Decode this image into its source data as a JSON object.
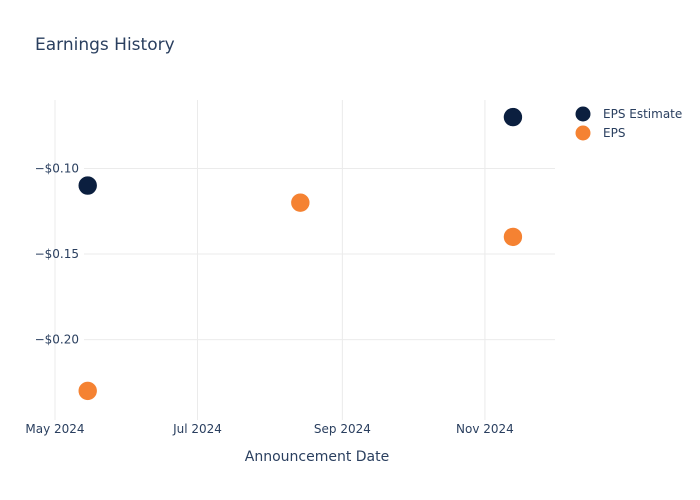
{
  "chart_data": {
    "type": "scatter",
    "title": "Earnings History",
    "xlabel": "Announcement Date",
    "ylabel": "",
    "x_axis": {
      "type": "date",
      "range": [
        "2024-05-01",
        "2024-12-01"
      ],
      "ticks": [
        {
          "date": "2024-05-01",
          "label": "May 2024"
        },
        {
          "date": "2024-07-01",
          "label": "Jul 2024"
        },
        {
          "date": "2024-09-01",
          "label": "Sep 2024"
        },
        {
          "date": "2024-11-01",
          "label": "Nov 2024"
        }
      ]
    },
    "y_axis": {
      "range": [
        -0.247,
        -0.06
      ],
      "ticks": [
        {
          "value": -0.1,
          "label": "−$0.10"
        },
        {
          "value": -0.15,
          "label": "−$0.15"
        },
        {
          "value": -0.2,
          "label": "−$0.20"
        }
      ]
    },
    "grid": true,
    "legend": "top-right",
    "series": [
      {
        "name": "EPS Estimate",
        "color": "#0b1f3f",
        "points": [
          {
            "x": "2024-05-15",
            "y": -0.11
          },
          {
            "x": "2024-08-14",
            "y": -0.12
          },
          {
            "x": "2024-11-13",
            "y": -0.07
          }
        ]
      },
      {
        "name": "EPS",
        "color": "#f58232",
        "points": [
          {
            "x": "2024-05-15",
            "y": -0.23
          },
          {
            "x": "2024-08-14",
            "y": -0.12
          },
          {
            "x": "2024-11-13",
            "y": -0.14
          }
        ]
      }
    ]
  },
  "colors": {
    "title": "#2a3f5f",
    "axis_text": "#2a3f5f",
    "grid": "#ebebeb"
  }
}
